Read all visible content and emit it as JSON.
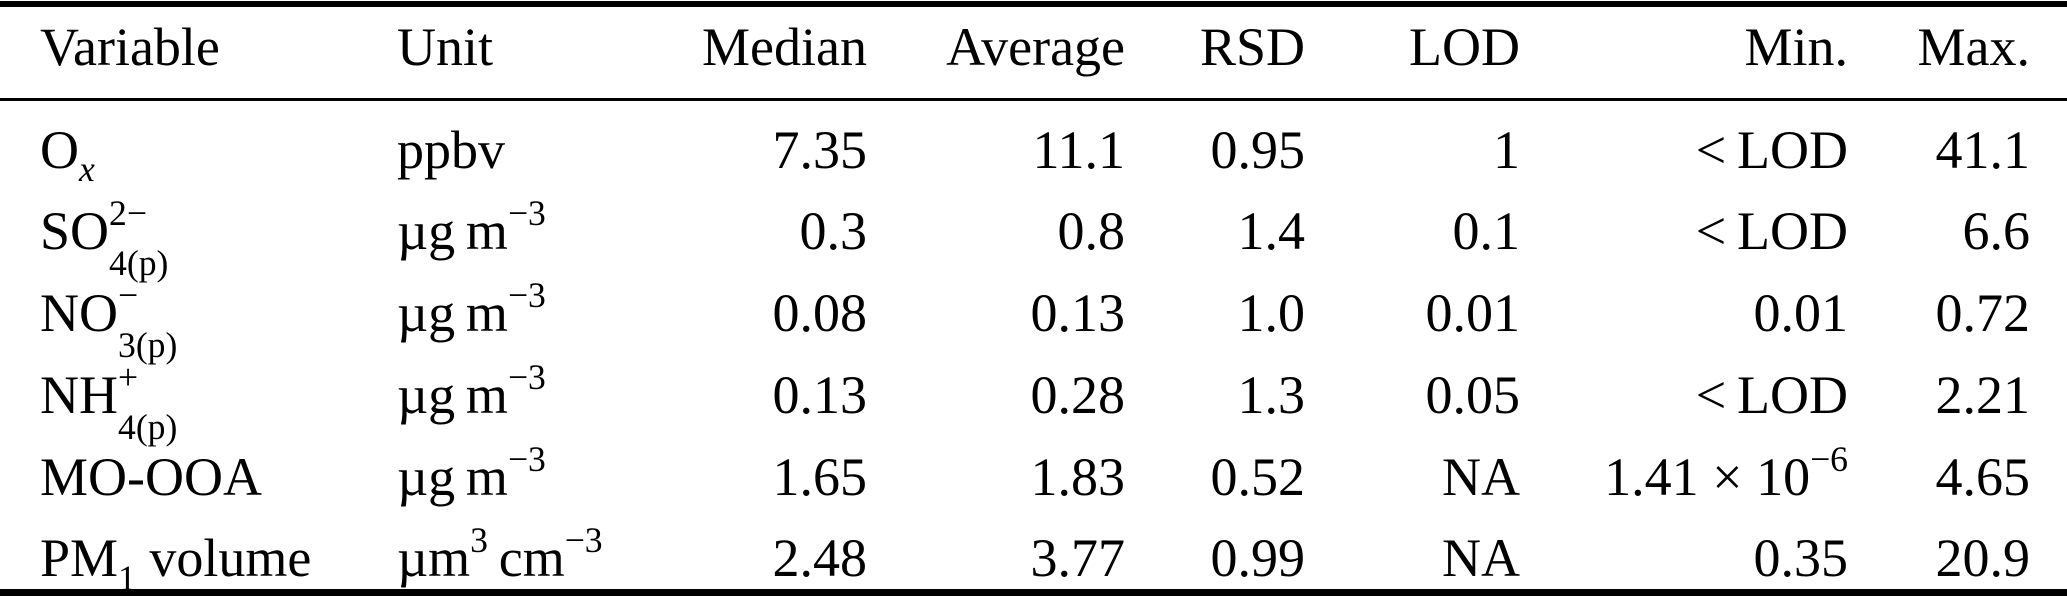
{
  "colors": {
    "text": "#000000",
    "background": "#ffffff",
    "rule": "#000000"
  },
  "table": {
    "columns": [
      {
        "key": "variable",
        "label": "Variable",
        "align": "left"
      },
      {
        "key": "unit",
        "label": "Unit",
        "align": "left"
      },
      {
        "key": "median",
        "label": "Median",
        "align": "right"
      },
      {
        "key": "average",
        "label": "Average",
        "align": "right"
      },
      {
        "key": "rsd",
        "label": "RSD",
        "align": "right"
      },
      {
        "key": "lod",
        "label": "LOD",
        "align": "right"
      },
      {
        "key": "min",
        "label": "Min.",
        "align": "right"
      },
      {
        "key": "max",
        "label": "Max.",
        "align": "right"
      }
    ],
    "rows": [
      {
        "variable": [
          {
            "text": "O"
          },
          {
            "sub": "x",
            "italic": true
          }
        ],
        "unit": "ppbv",
        "median": "7.35",
        "average": "11.1",
        "rsd": "0.95",
        "lod": "1",
        "min": "< LOD",
        "max": "41.1"
      },
      {
        "variable": [
          {
            "text": "SO"
          },
          {
            "stack": {
              "sup": "2−",
              "sub": "4(p)"
            }
          }
        ],
        "unit": [
          {
            "text": "µg m"
          },
          {
            "sup": "−3"
          }
        ],
        "median": "0.3",
        "average": "0.8",
        "rsd": "1.4",
        "lod": "0.1",
        "min": "< LOD",
        "max": "6.6"
      },
      {
        "variable": [
          {
            "text": "NO"
          },
          {
            "stack": {
              "sup": "−",
              "sub": "3(p)"
            }
          }
        ],
        "unit": [
          {
            "text": "µg m"
          },
          {
            "sup": "−3"
          }
        ],
        "median": "0.08",
        "average": "0.13",
        "rsd": "1.0",
        "lod": "0.01",
        "min": "0.01",
        "max": "0.72"
      },
      {
        "variable": [
          {
            "text": "NH"
          },
          {
            "stack": {
              "sup": "+",
              "sub": "4(p)"
            }
          }
        ],
        "unit": [
          {
            "text": "µg m"
          },
          {
            "sup": "−3"
          }
        ],
        "median": "0.13",
        "average": "0.28",
        "rsd": "1.3",
        "lod": "0.05",
        "min": "< LOD",
        "max": "2.21"
      },
      {
        "variable": "MO-OOA",
        "unit": [
          {
            "text": "µg m"
          },
          {
            "sup": "−3"
          }
        ],
        "median": "1.65",
        "average": "1.83",
        "rsd": "0.52",
        "lod": "NA",
        "min": [
          {
            "text": "1.41 × 10"
          },
          {
            "sup": "−6"
          }
        ],
        "max": "4.65"
      },
      {
        "variable": [
          {
            "text": "PM"
          },
          {
            "sub": "1"
          },
          {
            "text": " volume"
          }
        ],
        "unit": [
          {
            "text": "µm"
          },
          {
            "sup": "3"
          },
          {
            "text": " cm"
          },
          {
            "sup": "−3"
          }
        ],
        "median": "2.48",
        "average": "3.77",
        "rsd": "0.99",
        "lod": "NA",
        "min": "0.35",
        "max": "20.9"
      }
    ]
  }
}
